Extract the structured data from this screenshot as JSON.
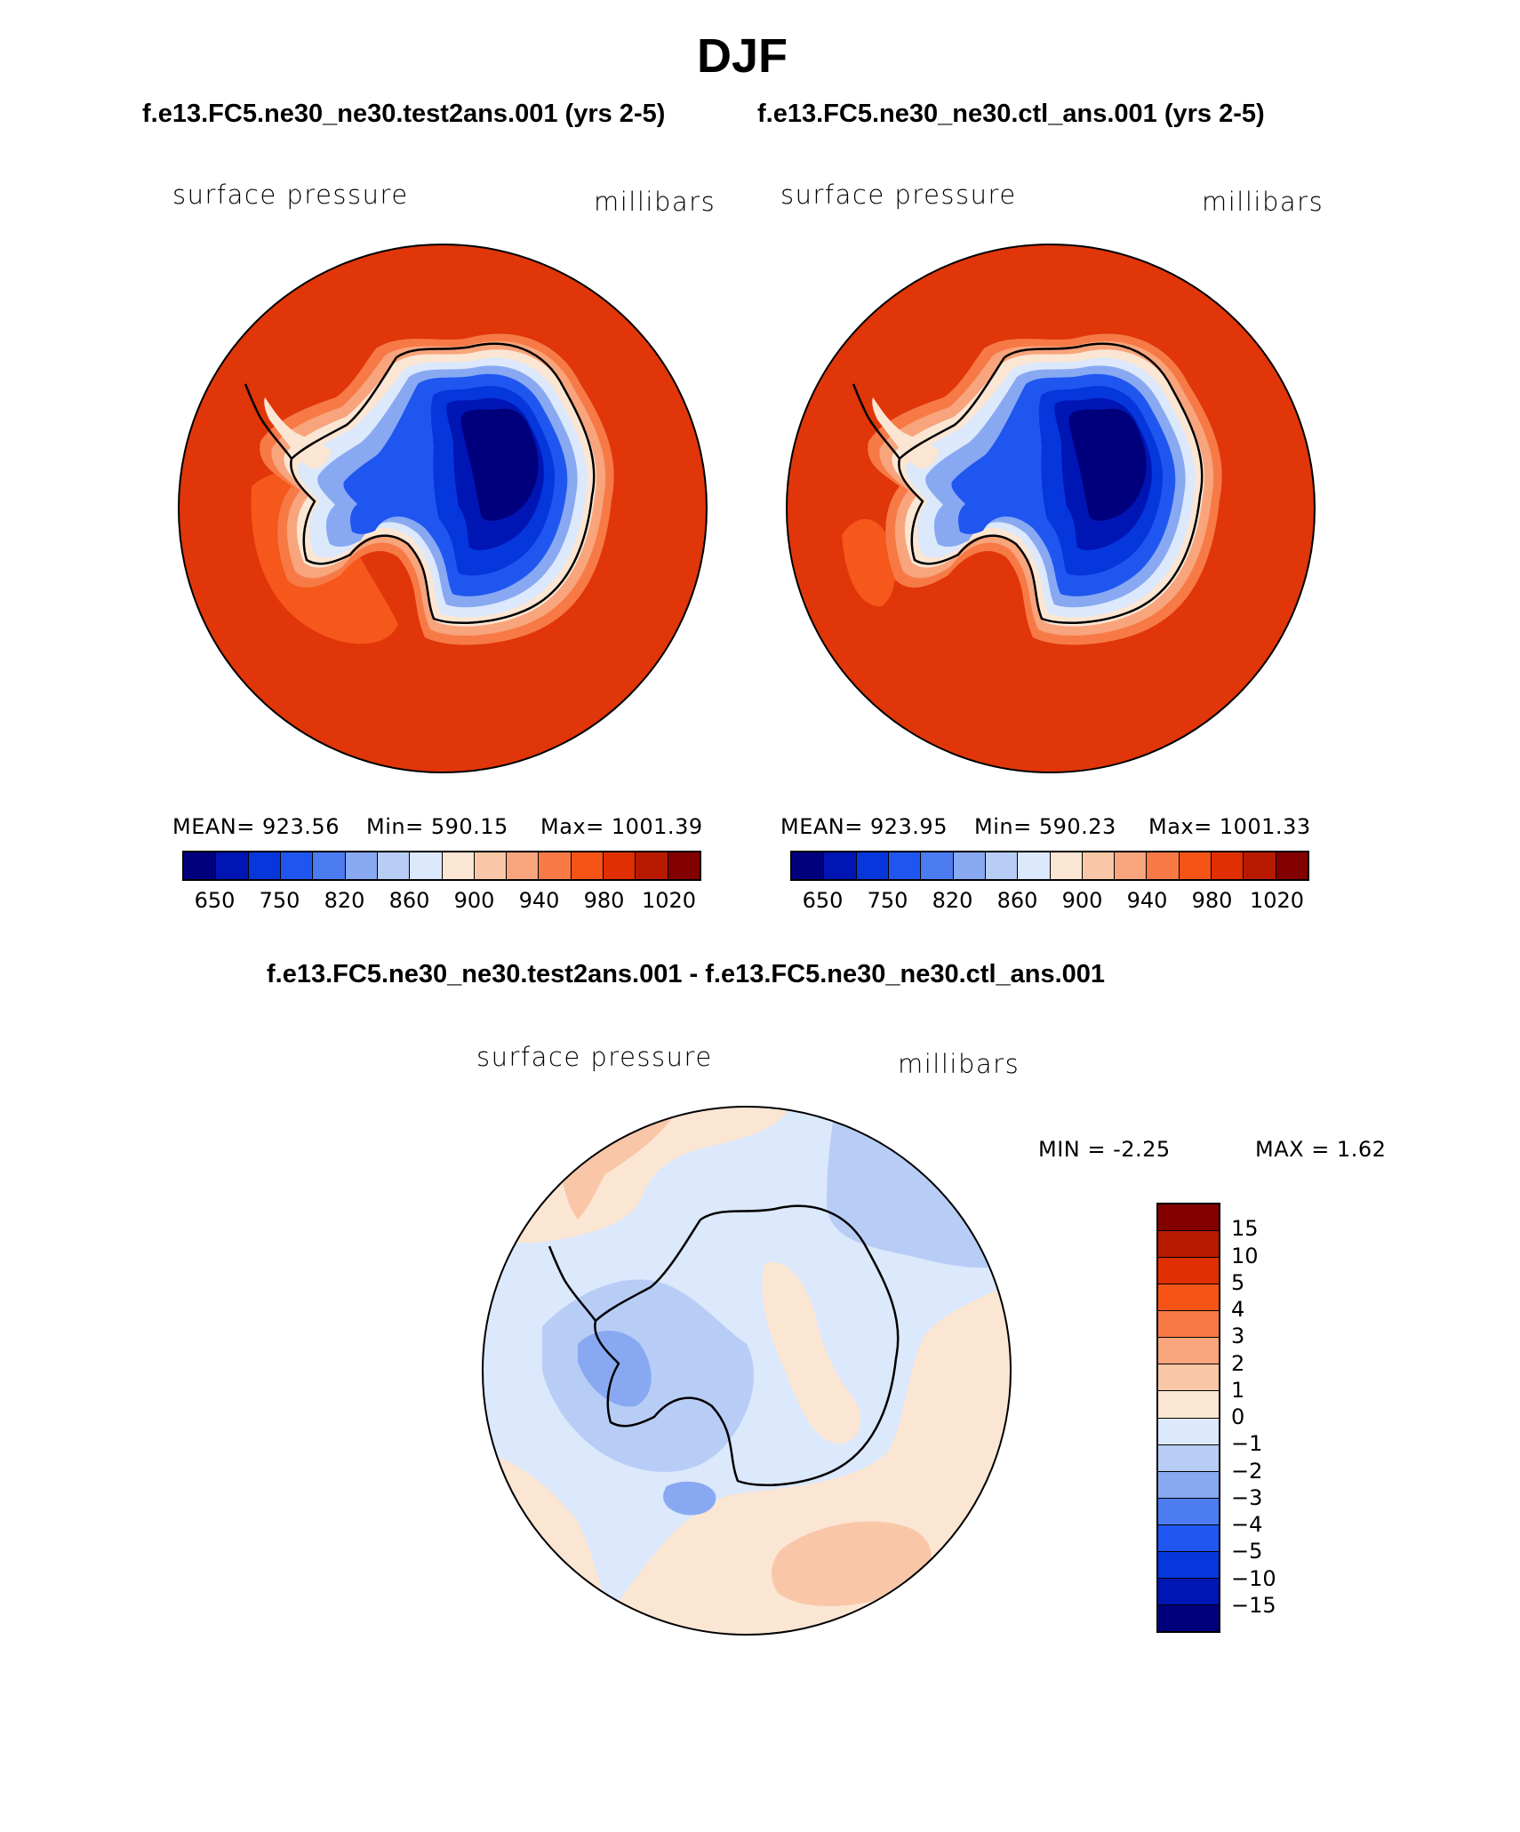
{
  "figure": {
    "title": "DJF",
    "case_titles": {
      "left": "f.e13.FC5.ne30_ne30.test2ans.001 (yrs 2-5)",
      "right": "f.e13.FC5.ne30_ne30.ctl_ans.001 (yrs 2-5)",
      "diff": "f.e13.FC5.ne30_ne30.test2ans.001 - f.e13.FC5.ne30_ne30.ctl_ans.001"
    }
  },
  "panels": {
    "left": {
      "variable": "surface pressure",
      "units": "millibars",
      "stats": {
        "mean": "MEAN= 923.56",
        "min": "Min= 590.15",
        "max": "Max= 1001.39"
      },
      "projection": "south polar stereographic"
    },
    "right": {
      "variable": "surface pressure",
      "units": "millibars",
      "stats": {
        "mean": "MEAN= 923.95",
        "min": "Min= 590.23",
        "max": "Max= 1001.33"
      },
      "projection": "south polar stereographic"
    },
    "diff": {
      "variable": "surface pressure",
      "units": "millibars",
      "stats": {
        "min": "MIN =   -2.25",
        "max": "MAX =    1.62"
      },
      "projection": "south polar stereographic"
    }
  },
  "colorbars": {
    "absolute": {
      "colors": [
        "#00007d",
        "#0016b4",
        "#0537dd",
        "#1f56f0",
        "#4c7cf0",
        "#88a9f2",
        "#b8cdf6",
        "#dce8fb",
        "#fbe6d4",
        "#f9c7a8",
        "#f8a47c",
        "#f77a46",
        "#f65416",
        "#e02f00",
        "#b81a00",
        "#830000"
      ],
      "tick_labels": [
        "650",
        "750",
        "820",
        "860",
        "900",
        "940",
        "980",
        "1020"
      ]
    },
    "difference": {
      "colors": [
        "#830000",
        "#b81a00",
        "#e02f00",
        "#f65416",
        "#f77a46",
        "#f8a47c",
        "#f9c7a8",
        "#fbe6d4",
        "#dce8fb",
        "#b8cdf6",
        "#88a9f2",
        "#4c7cf0",
        "#1f56f0",
        "#0537dd",
        "#0016b4",
        "#00007d"
      ],
      "tick_labels": [
        "15",
        "10",
        "5",
        "4",
        "3",
        "2",
        "1",
        "0",
        "−1",
        "−2",
        "−3",
        "−4",
        "−5",
        "−10",
        "−15"
      ]
    }
  },
  "map_colors": {
    "ocean_abs": "#e0360a",
    "coast_abs_1": "#f5581a",
    "coast_abs_2": "#f8a47c",
    "coast_abs_3": "#fbe6d4",
    "ice_1": "#dce8fb",
    "ice_2": "#88a9f2",
    "ice_3": "#1f56f0",
    "ice_4": "#0537dd",
    "ice_5": "#0016b4",
    "ice_6": "#00007d",
    "diff_pos_1": "#fbe6d4",
    "diff_pos_2": "#f9c7a8",
    "diff_neg_1": "#dce8fb",
    "diff_neg_2": "#b8cdf6",
    "diff_neg_3": "#88a9f2"
  }
}
